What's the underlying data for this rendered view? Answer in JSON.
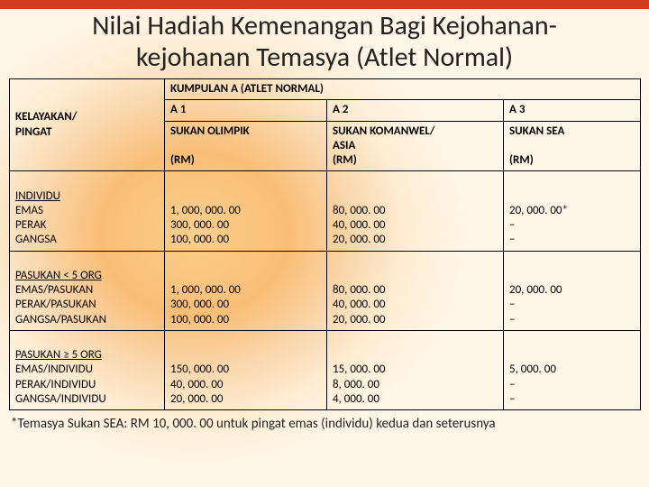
{
  "topbar": "",
  "title": "Nilai Hadiah Kemenangan Bagi Kejohanan-\nkejohanan Temasya (Atlet Normal)",
  "header": {
    "kelayakan": "KELAYAKAN/\nPINGAT",
    "group": "KUMPULAN A (ATLET NORMAL)",
    "a1_code": "A 1",
    "a2_code": "A 2",
    "a3_code": "A 3",
    "a1_event": "SUKAN OLIMPIK",
    "a2_event": "SUKAN KOMANWEL/\nASIA",
    "a3_event": "SUKAN SEA",
    "rm": "(RM)"
  },
  "rows": [
    {
      "label_u": "INDIVIDU",
      "lines": [
        "EMAS",
        "PERAK",
        "GANGSA"
      ],
      "a1": [
        "1, 000, 000. 00",
        "300, 000. 00",
        "100, 000. 00"
      ],
      "a2": [
        "80, 000. 00",
        "40, 000. 00",
        "20, 000. 00"
      ],
      "a3": [
        "20, 000. 00*",
        "–",
        "–"
      ]
    },
    {
      "label_u": "PASUKAN < 5 ORG",
      "lines": [
        "EMAS/PASUKAN",
        "PERAK/PASUKAN",
        "GANGSA/PASUKAN"
      ],
      "a1": [
        "1, 000, 000. 00",
        "300, 000. 00",
        "100, 000. 00"
      ],
      "a2": [
        "80, 000. 00",
        "40, 000. 00",
        "20, 000. 00"
      ],
      "a3": [
        "20, 000. 00",
        "–",
        "–"
      ]
    },
    {
      "label_u": "PASUKAN ≥ 5 ORG",
      "lines": [
        "EMAS/INDIVIDU",
        "PERAK/INDIVIDU",
        "GANGSA/INDIVIDU"
      ],
      "a1": [
        "150, 000. 00",
        "40, 000. 00",
        "20, 000. 00"
      ],
      "a2": [
        "15, 000. 00",
        "8, 000. 00",
        "4, 000. 00"
      ],
      "a3": [
        "5, 000. 00",
        "–",
        "–"
      ]
    }
  ],
  "footnote": "*Temasya Sukan SEA: RM 10, 000. 00 untuk pingat emas (individu) kedua dan seterusnya"
}
